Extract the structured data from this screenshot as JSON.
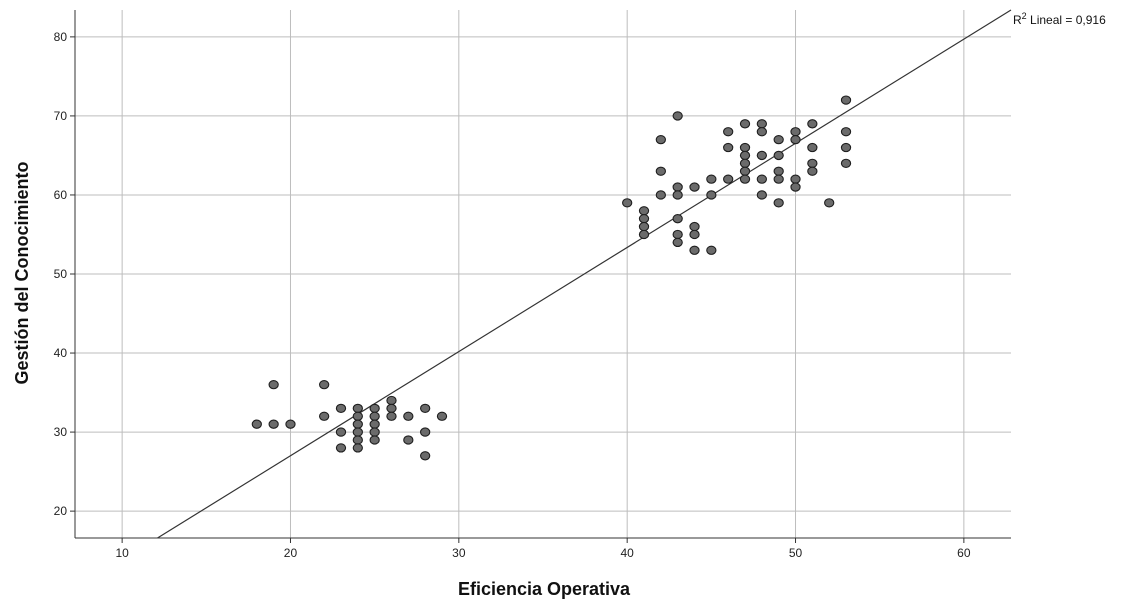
{
  "chart_data": {
    "type": "scatter",
    "xlabel": "Eficiencia Operativa",
    "ylabel": "Gestión del Conocimiento",
    "xlim": [
      7.2,
      62.8
    ],
    "ylim": [
      16.6,
      83.4
    ],
    "xticks": [
      10,
      20,
      30,
      40,
      50,
      60
    ],
    "yticks": [
      20,
      30,
      40,
      50,
      60,
      70,
      80
    ],
    "grid": true,
    "fit_line": {
      "from": [
        12.1,
        16.6
      ],
      "to": [
        62.8,
        83.4
      ]
    },
    "r2_label": {
      "prefix": "R",
      "sup": "2",
      "text": " Lineal = 0,916"
    },
    "colors": {
      "point_fill": "#6b6b6b",
      "point_stroke": "#1e1e1e",
      "grid": "#bdbdbd",
      "axis": "#333333",
      "fit": "#333333"
    },
    "points": [
      [
        18,
        31
      ],
      [
        19,
        36
      ],
      [
        19,
        31
      ],
      [
        20,
        31
      ],
      [
        22,
        36
      ],
      [
        22,
        32
      ],
      [
        23,
        33
      ],
      [
        23,
        30
      ],
      [
        23,
        28
      ],
      [
        24,
        33
      ],
      [
        24,
        32
      ],
      [
        24,
        31
      ],
      [
        24,
        30
      ],
      [
        24,
        29
      ],
      [
        24,
        28
      ],
      [
        25,
        33
      ],
      [
        25,
        32
      ],
      [
        25,
        31
      ],
      [
        25,
        30
      ],
      [
        25,
        29
      ],
      [
        26,
        34
      ],
      [
        26,
        33
      ],
      [
        26,
        32
      ],
      [
        27,
        32
      ],
      [
        27,
        29
      ],
      [
        28,
        33
      ],
      [
        28,
        30
      ],
      [
        28,
        27
      ],
      [
        29,
        32
      ],
      [
        40,
        59
      ],
      [
        41,
        58
      ],
      [
        41,
        57
      ],
      [
        41,
        56
      ],
      [
        41,
        55
      ],
      [
        42,
        67
      ],
      [
        42,
        63
      ],
      [
        42,
        60
      ],
      [
        43,
        70
      ],
      [
        43,
        61
      ],
      [
        43,
        60
      ],
      [
        43,
        57
      ],
      [
        43,
        55
      ],
      [
        43,
        54
      ],
      [
        44,
        61
      ],
      [
        44,
        56
      ],
      [
        44,
        55
      ],
      [
        44,
        53
      ],
      [
        45,
        62
      ],
      [
        45,
        60
      ],
      [
        45,
        53
      ],
      [
        46,
        68
      ],
      [
        46,
        66
      ],
      [
        46,
        62
      ],
      [
        47,
        69
      ],
      [
        47,
        66
      ],
      [
        47,
        65
      ],
      [
        47,
        64
      ],
      [
        47,
        63
      ],
      [
        47,
        62
      ],
      [
        48,
        69
      ],
      [
        48,
        68
      ],
      [
        48,
        65
      ],
      [
        48,
        62
      ],
      [
        48,
        60
      ],
      [
        49,
        67
      ],
      [
        49,
        65
      ],
      [
        49,
        63
      ],
      [
        49,
        62
      ],
      [
        49,
        59
      ],
      [
        50,
        68
      ],
      [
        50,
        67
      ],
      [
        50,
        62
      ],
      [
        50,
        61
      ],
      [
        51,
        69
      ],
      [
        51,
        66
      ],
      [
        51,
        64
      ],
      [
        51,
        63
      ],
      [
        52,
        59
      ],
      [
        53,
        72
      ],
      [
        53,
        68
      ],
      [
        53,
        66
      ],
      [
        53,
        64
      ]
    ]
  }
}
